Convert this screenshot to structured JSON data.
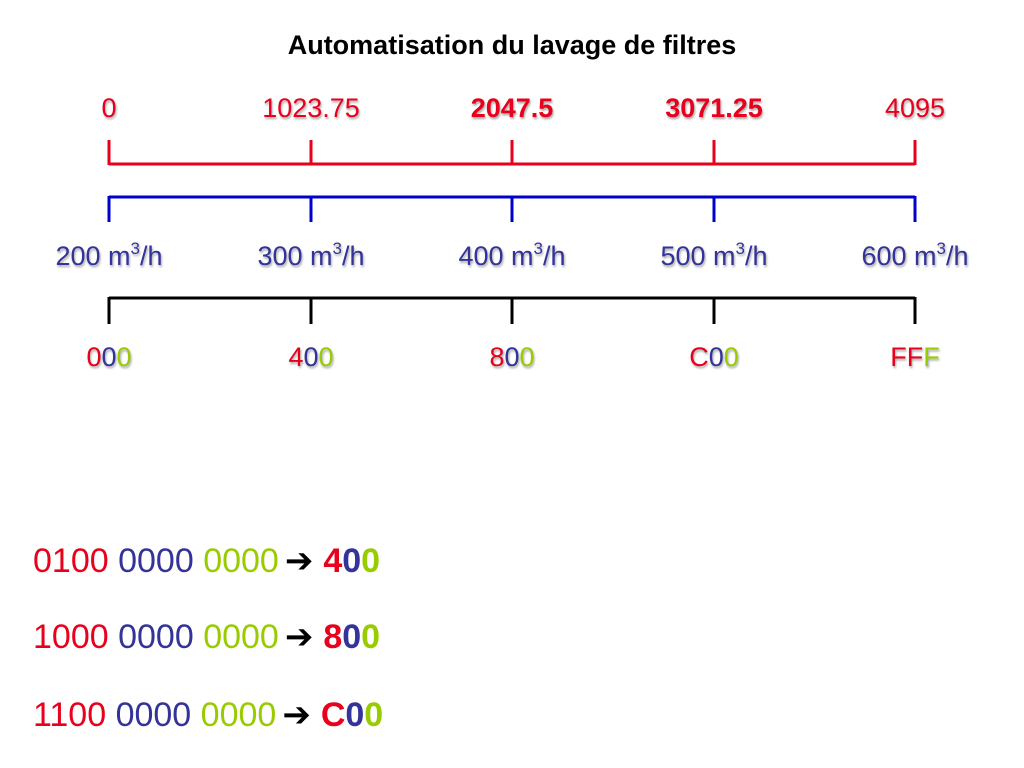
{
  "title": "Automatisation du lavage de filtres",
  "colors": {
    "red": "#e8001c",
    "blue": "#0000cc",
    "navy": "#333399",
    "green": "#99cc00",
    "black": "#000000"
  },
  "scale_values": [
    {
      "text": "0",
      "bold": false
    },
    {
      "text": "1023.75",
      "bold": false
    },
    {
      "text": "2047.5",
      "bold": true
    },
    {
      "text": "3071.25",
      "bold": true
    },
    {
      "text": "4095",
      "bold": false
    }
  ],
  "flow_values": [
    {
      "value": "200 m",
      "sup": "3",
      "unit": "/h"
    },
    {
      "value": "300 m",
      "sup": "3",
      "unit": "/h"
    },
    {
      "value": "400 m",
      "sup": "3",
      "unit": "/h"
    },
    {
      "value": "500 m",
      "sup": "3",
      "unit": "/h"
    },
    {
      "value": "600 m",
      "sup": "3",
      "unit": "/h"
    }
  ],
  "hex_values": [
    {
      "d1": "0",
      "d2": "0",
      "d3": "0"
    },
    {
      "d1": "4",
      "d2": "0",
      "d3": "0"
    },
    {
      "d1": "8",
      "d2": "0",
      "d3": "0"
    },
    {
      "d1": "C",
      "d2": "0",
      "d3": "0"
    },
    {
      "d1": "F",
      "d2": "F",
      "d3": "F"
    }
  ],
  "conversions": [
    {
      "b1": "0100",
      "b2": "0000",
      "b3": "0000",
      "h1": "4",
      "h2": "0",
      "h3": "0"
    },
    {
      "b1": "1000",
      "b2": "0000",
      "b3": "0000",
      "h1": "8",
      "h2": "0",
      "h3": "0"
    },
    {
      "b1": "1100",
      "b2": "0000",
      "b3": "0000",
      "h1": "C",
      "h2": "0",
      "h3": "0"
    }
  ],
  "arrow_icon": "right-arrow-icon"
}
